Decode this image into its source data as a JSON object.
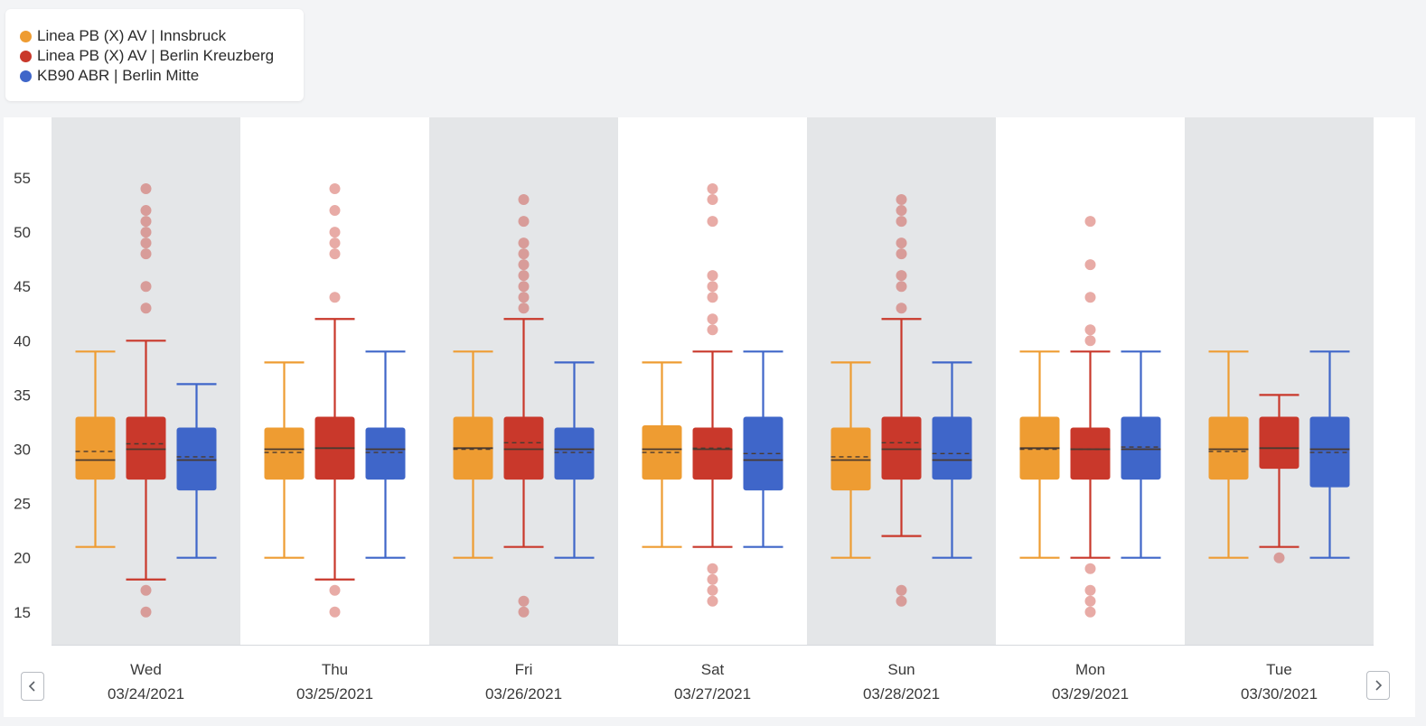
{
  "legend": {
    "items": [
      {
        "label": "Linea PB (X) AV | Innsbruck",
        "color": "#ee9c32"
      },
      {
        "label": "Linea PB (X) AV | Berlin Kreuzberg",
        "color": "#c9382b"
      },
      {
        "label": "KB90 ABR | Berlin Mitte",
        "color": "#3f66c9"
      }
    ]
  },
  "navigation": {
    "prev_icon": "chevron-left-icon",
    "next_icon": "chevron-right-icon"
  },
  "chart_data": {
    "type": "box",
    "ylim": [
      12,
      59
    ],
    "yticks": [
      15,
      20,
      25,
      30,
      35,
      40,
      45,
      50,
      55
    ],
    "categories": [
      {
        "day": "Wed",
        "date": "03/24/2021",
        "shaded": true
      },
      {
        "day": "Thu",
        "date": "03/25/2021",
        "shaded": false
      },
      {
        "day": "Fri",
        "date": "03/26/2021",
        "shaded": true
      },
      {
        "day": "Sat",
        "date": "03/27/2021",
        "shaded": false
      },
      {
        "day": "Sun",
        "date": "03/28/2021",
        "shaded": true
      },
      {
        "day": "Mon",
        "date": "03/29/2021",
        "shaded": false
      },
      {
        "day": "Tue",
        "date": "03/30/2021",
        "shaded": true
      }
    ],
    "series": [
      {
        "name": "Linea PB (X) AV | Innsbruck",
        "color": "#ee9c32",
        "boxes": [
          {
            "min": 21,
            "q1": 27.2,
            "median": 29,
            "mean": 29.8,
            "q3": 33,
            "max": 39,
            "outliers": []
          },
          {
            "min": 20,
            "q1": 27.2,
            "median": 30,
            "mean": 29.7,
            "q3": 32,
            "max": 38,
            "outliers": []
          },
          {
            "min": 20,
            "q1": 27.2,
            "median": 30.1,
            "mean": 30,
            "q3": 33,
            "max": 39,
            "outliers": []
          },
          {
            "min": 21,
            "q1": 27.2,
            "median": 30,
            "mean": 29.7,
            "q3": 32.2,
            "max": 38,
            "outliers": []
          },
          {
            "min": 20,
            "q1": 26.2,
            "median": 29,
            "mean": 29.3,
            "q3": 32,
            "max": 38,
            "outliers": []
          },
          {
            "min": 20,
            "q1": 27.2,
            "median": 30.1,
            "mean": 30,
            "q3": 33,
            "max": 39,
            "outliers": []
          },
          {
            "min": 20,
            "q1": 27.2,
            "median": 30,
            "mean": 29.8,
            "q3": 33,
            "max": 39,
            "outliers": []
          }
        ]
      },
      {
        "name": "Linea PB (X) AV | Berlin Kreuzberg",
        "color": "#c9382b",
        "boxes": [
          {
            "min": 18,
            "q1": 27.2,
            "median": 30,
            "mean": 30.5,
            "q3": 33,
            "max": 40,
            "outliers": [
              15,
              17,
              43,
              45,
              48,
              49,
              50,
              51,
              52,
              54
            ]
          },
          {
            "min": 18,
            "q1": 27.2,
            "median": 30.1,
            "mean": 30.1,
            "q3": 33,
            "max": 42,
            "outliers": [
              15,
              17,
              44,
              48,
              49,
              50,
              52,
              54
            ]
          },
          {
            "min": 21,
            "q1": 27.2,
            "median": 30,
            "mean": 30.6,
            "q3": 33,
            "max": 42,
            "outliers": [
              15,
              16,
              43,
              44,
              45,
              46,
              47,
              48,
              49,
              51,
              53
            ]
          },
          {
            "min": 21,
            "q1": 27.2,
            "median": 30,
            "mean": 30.1,
            "q3": 32,
            "max": 39,
            "outliers": [
              16,
              17,
              18,
              19,
              41,
              42,
              44,
              45,
              46,
              51,
              53,
              54
            ]
          },
          {
            "min": 22,
            "q1": 27.2,
            "median": 30,
            "mean": 30.6,
            "q3": 33,
            "max": 42,
            "outliers": [
              16,
              17,
              43,
              45,
              46,
              48,
              49,
              51,
              52,
              53
            ]
          },
          {
            "min": 20,
            "q1": 27.2,
            "median": 30,
            "mean": 30,
            "q3": 32,
            "max": 39,
            "outliers": [
              15,
              16,
              17,
              19,
              40,
              41,
              44,
              47,
              51
            ]
          },
          {
            "min": 21,
            "q1": 28.2,
            "median": 30.1,
            "mean": 30.1,
            "q3": 33,
            "max": 35,
            "outliers": [
              20
            ]
          }
        ]
      },
      {
        "name": "KB90 ABR | Berlin Mitte",
        "color": "#3f66c9",
        "boxes": [
          {
            "min": 20,
            "q1": 26.2,
            "median": 29,
            "mean": 29.3,
            "q3": 32,
            "max": 36,
            "outliers": []
          },
          {
            "min": 20,
            "q1": 27.2,
            "median": 30,
            "mean": 29.7,
            "q3": 32,
            "max": 39,
            "outliers": []
          },
          {
            "min": 20,
            "q1": 27.2,
            "median": 30,
            "mean": 29.7,
            "q3": 32,
            "max": 38,
            "outliers": []
          },
          {
            "min": 21,
            "q1": 26.2,
            "median": 29,
            "mean": 29.6,
            "q3": 33,
            "max": 39,
            "outliers": []
          },
          {
            "min": 20,
            "q1": 27.2,
            "median": 29,
            "mean": 29.6,
            "q3": 33,
            "max": 38,
            "outliers": []
          },
          {
            "min": 20,
            "q1": 27.2,
            "median": 30,
            "mean": 30.2,
            "q3": 33,
            "max": 39,
            "outliers": []
          },
          {
            "min": 20,
            "q1": 26.5,
            "median": 30,
            "mean": 29.7,
            "q3": 33,
            "max": 39,
            "outliers": []
          }
        ]
      }
    ]
  }
}
